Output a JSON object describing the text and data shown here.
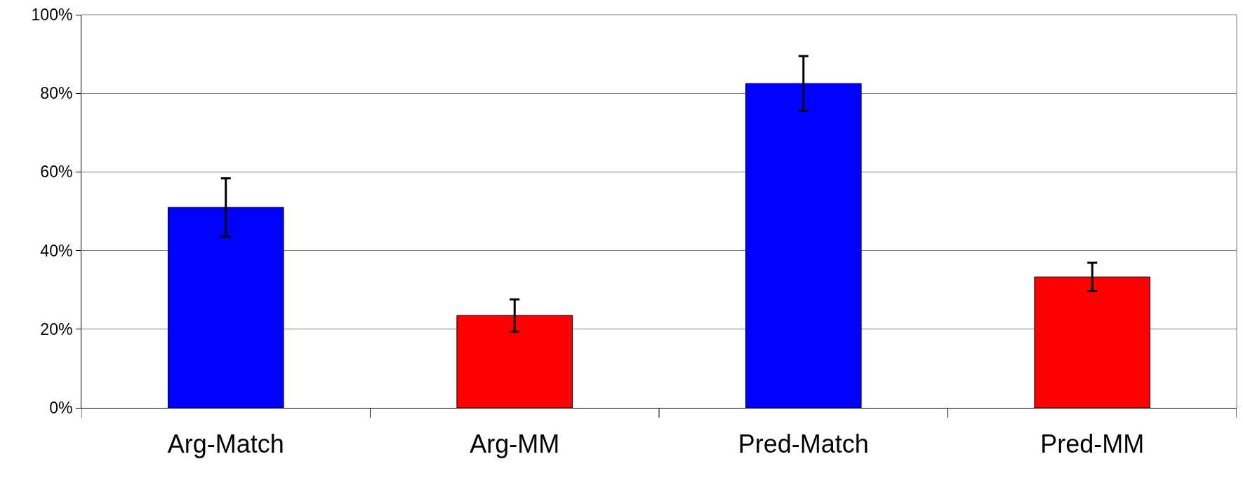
{
  "chart_data": {
    "type": "bar",
    "categories": [
      "Arg-Match",
      "Arg-MM",
      "Pred-Match",
      "Pred-MM"
    ],
    "values": [
      51,
      23.5,
      82.5,
      33.3
    ],
    "colors": [
      "#0000ff",
      "#ff0000",
      "#0000ff",
      "#ff0000"
    ],
    "errors": [
      7.4,
      4.1,
      7,
      3.6
    ],
    "ylim": [
      0,
      100
    ],
    "yticks": [
      {
        "value": 0,
        "label": "0%"
      },
      {
        "value": 20,
        "label": "20%"
      },
      {
        "value": 40,
        "label": "40%"
      },
      {
        "value": 60,
        "label": "60%"
      },
      {
        "value": 80,
        "label": "80%"
      },
      {
        "value": 100,
        "label": "100%"
      }
    ],
    "grid": "y"
  }
}
